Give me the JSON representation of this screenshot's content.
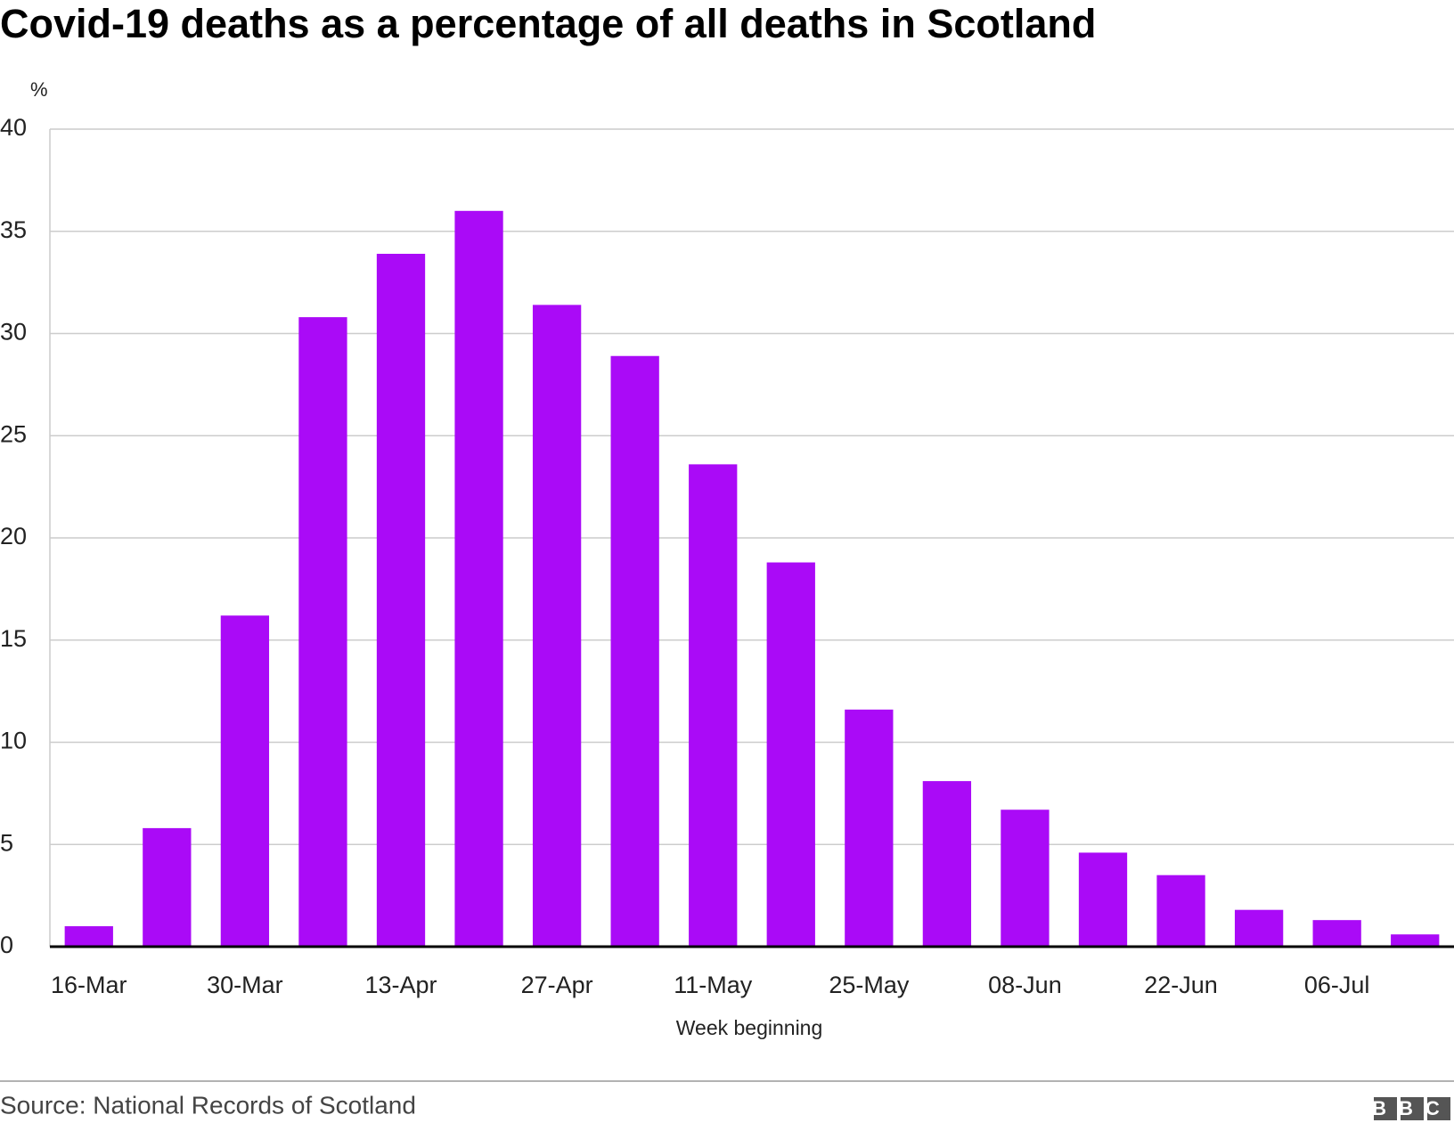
{
  "chart_data": {
    "type": "bar",
    "title": "Covid-19 deaths as a percentage of all deaths in Scotland",
    "y_unit": "%",
    "x_label": "Week beginning",
    "source": "Source: National Records of Scotland",
    "logo": "BBC",
    "categories": [
      "16-Mar",
      null,
      "30-Mar",
      null,
      "13-Apr",
      null,
      "27-Apr",
      null,
      "11-May",
      null,
      "25-May",
      null,
      "08-Jun",
      null,
      "22-Jun",
      null,
      "06-Jul",
      null
    ],
    "values": [
      1.0,
      5.8,
      16.2,
      30.8,
      33.9,
      36.0,
      31.4,
      28.9,
      23.6,
      18.8,
      11.6,
      8.1,
      6.7,
      4.6,
      3.5,
      1.8,
      1.3,
      0.6
    ],
    "color": "#aa0af7",
    "ylim": [
      0,
      40
    ],
    "yticks": [
      0,
      5,
      10,
      15,
      20,
      25,
      30,
      35,
      40
    ],
    "grid": true
  }
}
